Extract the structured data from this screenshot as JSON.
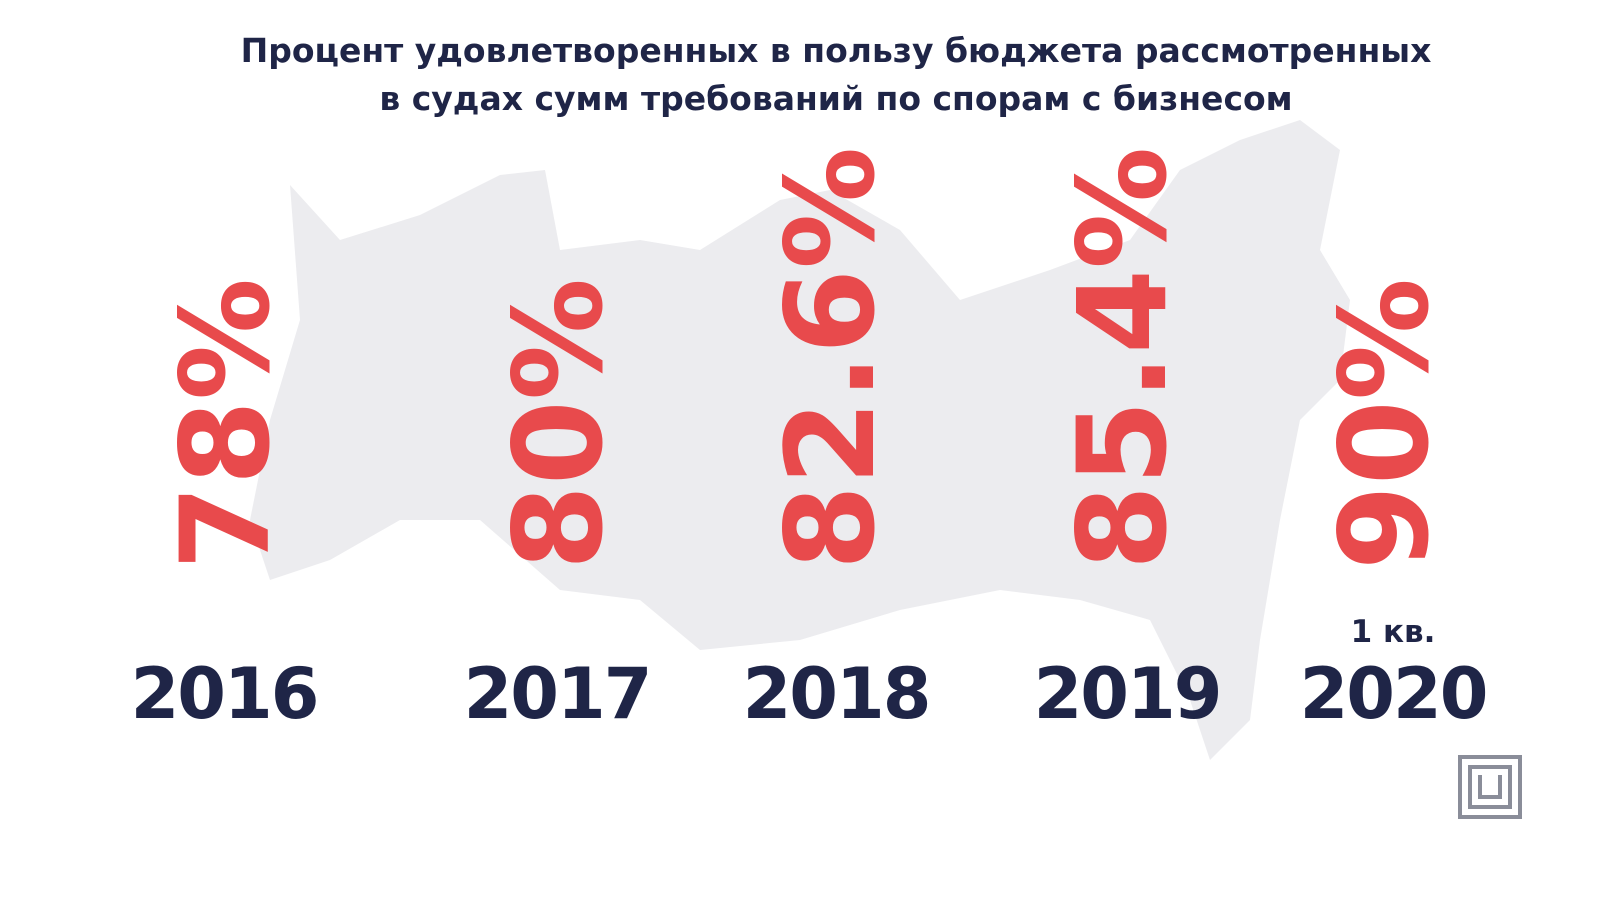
{
  "chart_data": {
    "type": "label",
    "title": "Процент удовлетворенных в пользу бюджета рассмотренных",
    "subtitle": "в судах сумм требований по спорам с бизнесом",
    "categories": [
      "2016",
      "2017",
      "2018",
      "2019",
      "2020"
    ],
    "values": [
      78,
      80,
      82.6,
      85.4,
      90
    ],
    "value_labels": [
      "78%",
      "80%",
      "82.6%",
      "85.4%",
      "90%"
    ],
    "annotation": "1 кв.",
    "color": "#e84a4c"
  }
}
